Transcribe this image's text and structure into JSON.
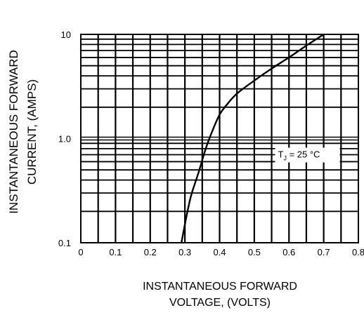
{
  "chart_data": {
    "type": "line",
    "title": "",
    "xlabel_lines": [
      "INSTANTANEOUS FORWARD",
      "VOLTAGE, (VOLTS)"
    ],
    "ylabel_lines": [
      "INSTANTANEOUS FORWARD",
      "CURRENT,  (AMPS)"
    ],
    "xlim": [
      0,
      0.8
    ],
    "ylim": [
      0.1,
      10
    ],
    "yscale": "log",
    "grid": true,
    "x_ticks": [
      0,
      0.1,
      0.2,
      0.3,
      0.4,
      0.5,
      0.6,
      0.7,
      0.8
    ],
    "x_tick_labels": [
      "0",
      "0.1",
      "0.2",
      "0.3",
      "0.4",
      "0.5",
      "0.6",
      "0.7",
      "0.8"
    ],
    "y_ticks": [
      0.1,
      1.0,
      10
    ],
    "y_tick_labels": [
      "0.1",
      "1.0",
      "10"
    ],
    "series": [
      {
        "x": [
          0.29,
          0.3,
          0.31,
          0.32,
          0.34,
          0.36,
          0.38,
          0.4,
          0.42,
          0.45,
          0.5,
          0.55,
          0.6,
          0.65,
          0.7
        ],
        "y": [
          0.1,
          0.15,
          0.22,
          0.3,
          0.48,
          0.8,
          1.2,
          1.7,
          2.1,
          2.7,
          3.6,
          4.7,
          6.0,
          7.8,
          10.0
        ],
        "color": "#000000"
      }
    ],
    "annotation": {
      "main": "T",
      "subscript": "J",
      "rest": " = 25 °C",
      "x": 0.56,
      "y": 0.7
    }
  }
}
